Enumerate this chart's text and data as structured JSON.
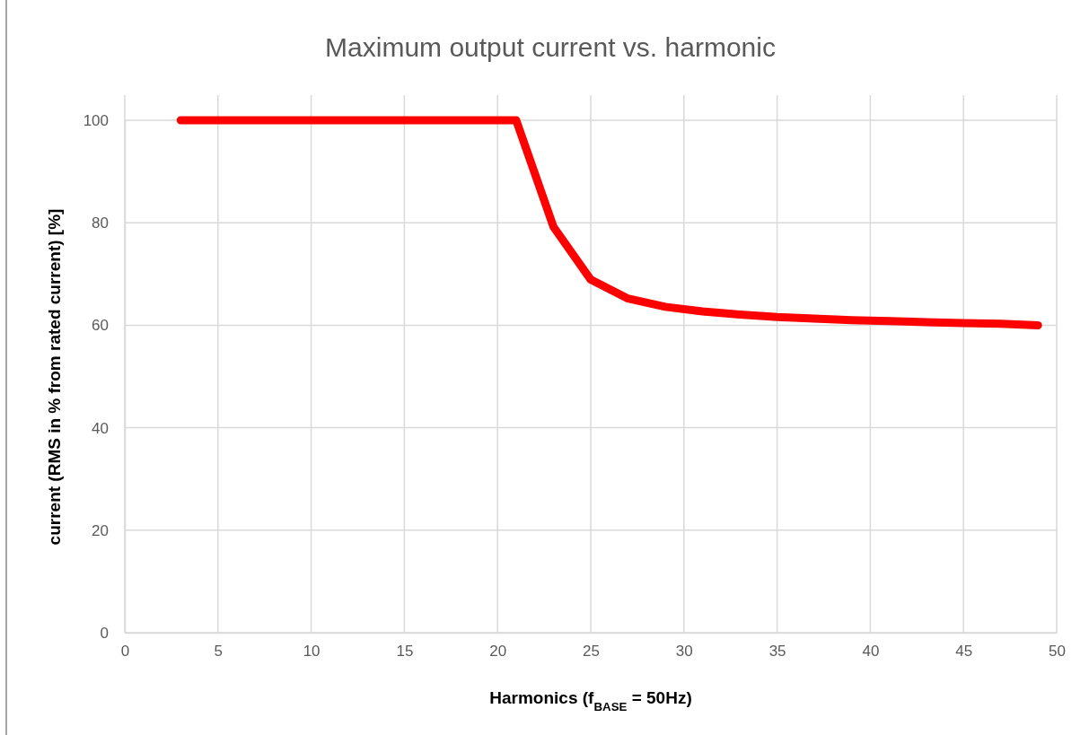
{
  "chart_data": {
    "type": "line",
    "title": "Maximum output current vs. harmonic",
    "xlabel": "Harmonics (f$_{BASE}$ = 50Hz)",
    "ylabel": "current (RMS in % from rated current) [%]",
    "x": [
      3,
      5,
      7,
      9,
      11,
      13,
      15,
      17,
      19,
      21,
      23,
      25,
      27,
      29,
      31,
      33,
      35,
      37,
      39,
      41,
      43,
      45,
      47,
      49
    ],
    "series": [
      {
        "color": "#ff0000",
        "values": [
          100,
          100,
          100,
          100,
          100,
          100,
          100,
          100,
          100,
          100,
          79.2,
          68.9,
          65.2,
          63.6,
          62.7,
          62.1,
          61.6,
          61.3,
          61.0,
          60.8,
          60.6,
          60.4,
          60.3,
          60.0
        ]
      }
    ],
    "xlim": [
      0,
      50
    ],
    "xticks": [
      0,
      5,
      10,
      15,
      20,
      25,
      30,
      35,
      40,
      45,
      50
    ],
    "ylim": [
      0,
      100
    ],
    "yticks": [
      0,
      20,
      40,
      60,
      80,
      100
    ],
    "grid": true,
    "marker": "none",
    "line_style": "solid"
  }
}
